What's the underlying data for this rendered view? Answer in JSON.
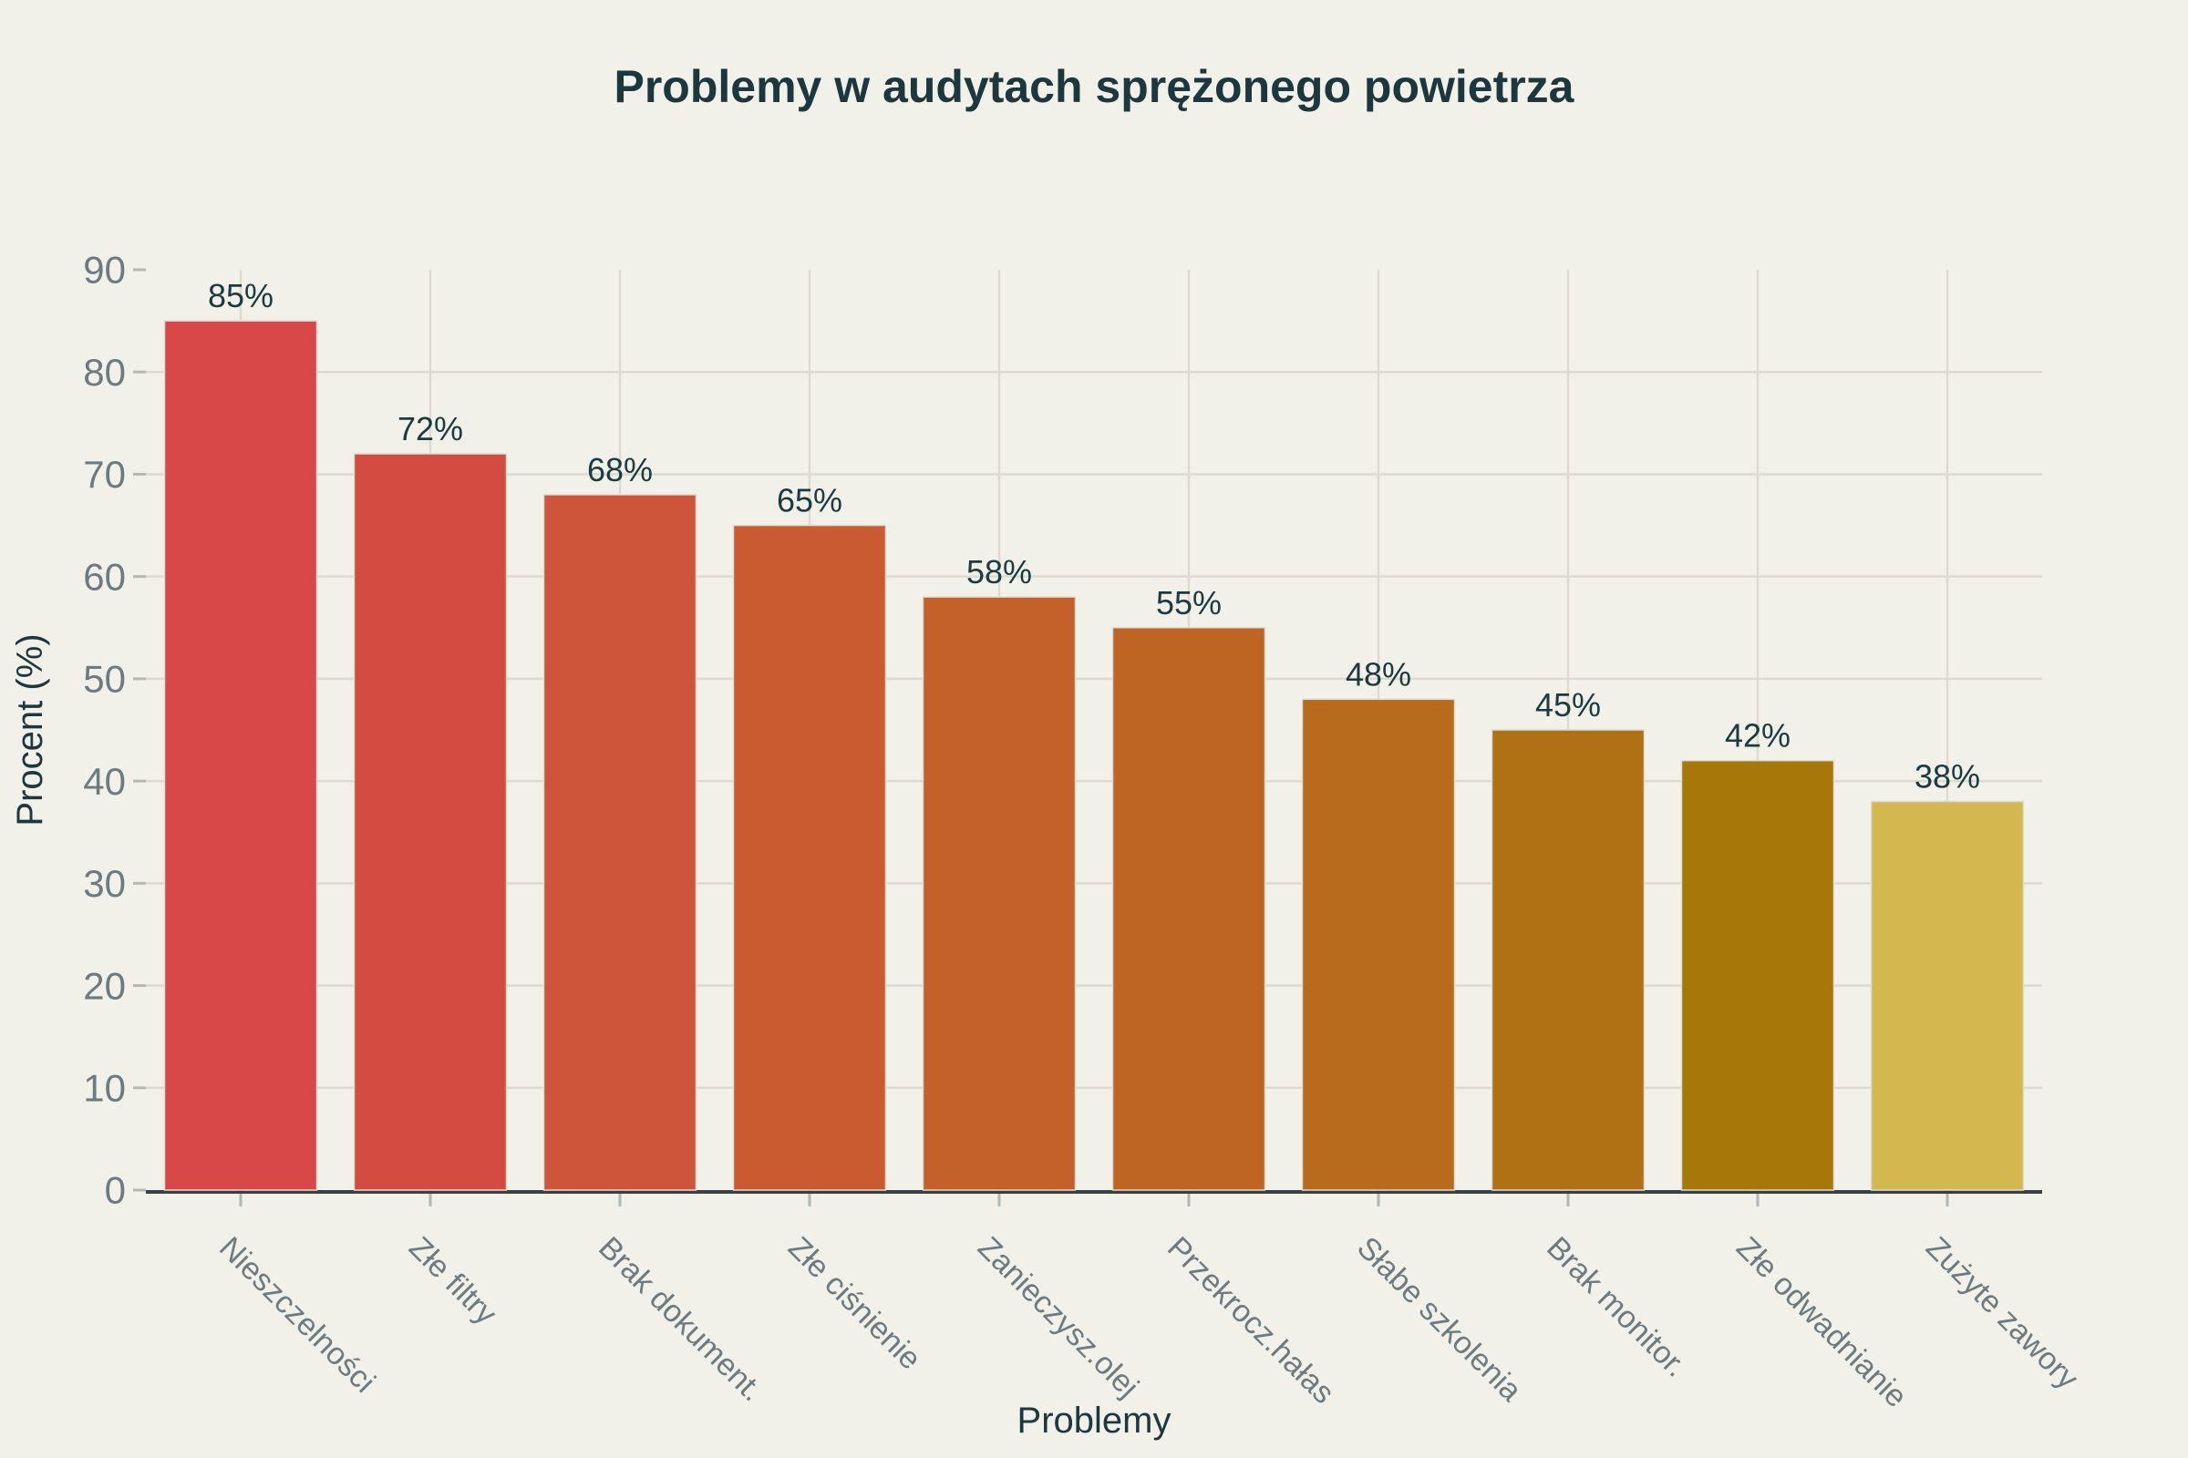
{
  "chart_data": {
    "type": "bar",
    "title": "Problemy w audytach sprężonego powietrza",
    "xlabel": "Problemy",
    "ylabel": "Procent (%)",
    "categories": [
      "Nieszczelności",
      "Złe filtry",
      "Brak dokument.",
      "Złe ciśnienie",
      "Zanieczysz.olej",
      "Przekrocz.hałas",
      "Słabe szkolenia",
      "Brak monitor.",
      "Złe odwadnianie",
      "Zużyte zawory"
    ],
    "values": [
      85,
      72,
      68,
      65,
      58,
      55,
      48,
      45,
      42,
      38
    ],
    "value_labels": [
      "85%",
      "72%",
      "68%",
      "65%",
      "58%",
      "55%",
      "48%",
      "45%",
      "42%",
      "38%"
    ],
    "ylim": [
      0,
      90
    ],
    "ytick_step": 10,
    "ytick_labels": [
      "0",
      "10",
      "20",
      "30",
      "40",
      "50",
      "60",
      "70",
      "80",
      "90"
    ],
    "grid": true,
    "legend_position": "none",
    "bar_colors": [
      "#d94848",
      "#d44c41",
      "#cf553a",
      "#ca5b31",
      "#c4602a",
      "#bf6523",
      "#b86b1c",
      "#b07014",
      "#a87709",
      "#d2b84e"
    ],
    "colors": {
      "background": "#f1f1ea",
      "title_text": "#1c373d",
      "axis_title_text": "#1c373d",
      "value_label_text": "#1c3a40",
      "tick_label_text": "#6d7a7f",
      "gridline": "#dcdad1",
      "axis_line": "#3a3f42",
      "tick_mark": "#b3b8b5",
      "bar_edge": "#deddd3"
    }
  }
}
